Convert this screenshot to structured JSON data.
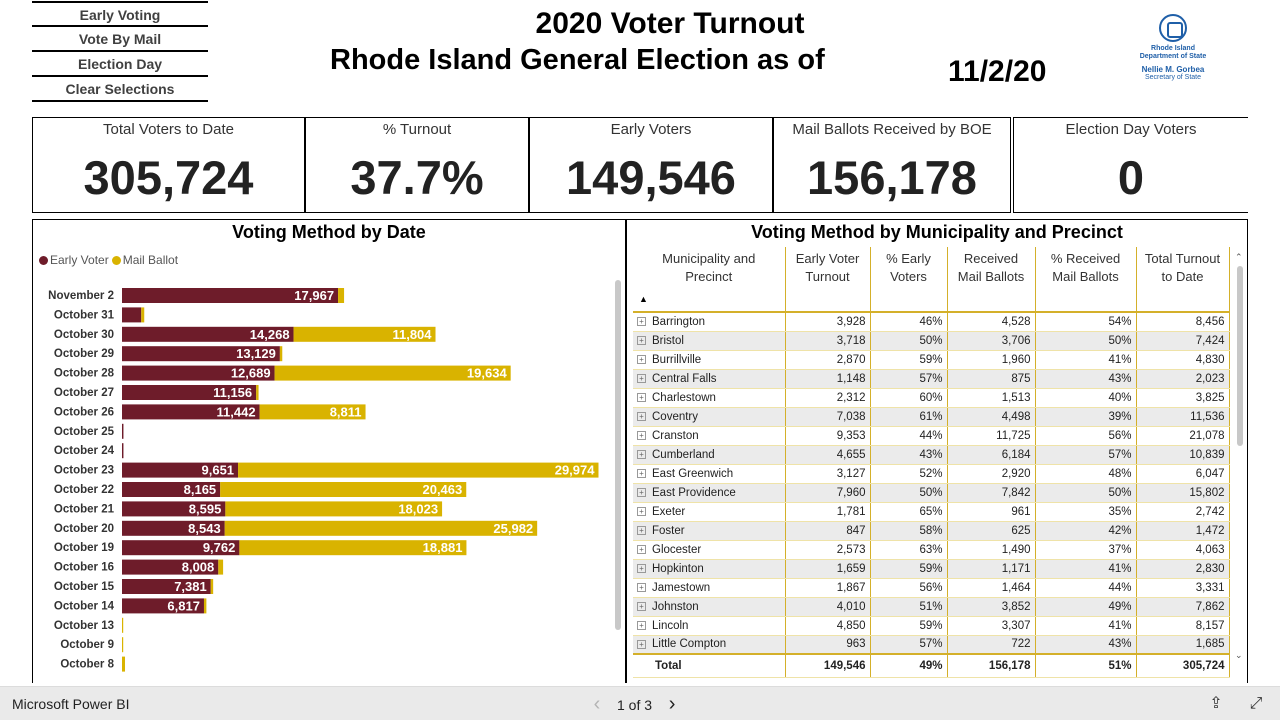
{
  "nav": {
    "buttons": [
      "Early Voting",
      "Vote By Mail",
      "Election Day",
      "Clear Selections"
    ]
  },
  "header": {
    "title_line1": "2020 Voter Turnout",
    "title_line2": "Rhode Island General Election as of",
    "as_of_date": "11/2/20"
  },
  "logo": {
    "line1": "Rhode Island",
    "line2": "Department of State",
    "line3": "Nellie M. Gorbea",
    "line4": "Secretary of State"
  },
  "kpis": [
    {
      "label": "Total Voters to Date",
      "value": "305,724"
    },
    {
      "label": "% Turnout",
      "value": "37.7%"
    },
    {
      "label": "Early Voters",
      "value": "149,546"
    },
    {
      "label": "Mail Ballots Received by BOE",
      "value": "156,178"
    },
    {
      "label": "Election Day Voters",
      "value": "0"
    }
  ],
  "colors": {
    "early_voter": "#6e1c2a",
    "mail_ballot": "#d9b300",
    "table_border": "#d4b02a"
  },
  "chart_data": {
    "type": "bar",
    "orientation": "horizontal",
    "stacked": true,
    "title": "Voting Method by Date",
    "legend": [
      "Early Voter",
      "Mail Ballot"
    ],
    "legend_position": "top-left",
    "categories": [
      "November 2",
      "October 31",
      "October 30",
      "October 29",
      "October 28",
      "October 27",
      "October 26",
      "October 25",
      "October 24",
      "October 23",
      "October 22",
      "October 21",
      "October 20",
      "October 19",
      "October 16",
      "October 15",
      "October 14",
      "October 13",
      "October 9",
      "October 8"
    ],
    "series": [
      {
        "name": "Early Voter",
        "values": [
          17967,
          1600,
          14268,
          13129,
          12689,
          11156,
          11442,
          120,
          120,
          9651,
          8165,
          8595,
          8543,
          9762,
          8008,
          7381,
          6817,
          0,
          0,
          0
        ],
        "labels": [
          "17,967",
          "",
          "14,268",
          "13,129",
          "12,689",
          "11,156",
          "11,442",
          "",
          "",
          "9,651",
          "8,165",
          "8,595",
          "8,543",
          "9,762",
          "8,008",
          "7,381",
          "6,817",
          "",
          "",
          ""
        ]
      },
      {
        "name": "Mail Ballot",
        "values": [
          500,
          250,
          11804,
          200,
          19634,
          200,
          8811,
          0,
          0,
          29974,
          20463,
          18023,
          25982,
          18881,
          400,
          200,
          200,
          100,
          100,
          250
        ],
        "labels": [
          "",
          "",
          "11,804",
          "",
          "19,634",
          "",
          "8,811",
          "",
          "",
          "29,974",
          "20,463",
          "18,023",
          "25,982",
          "18,881",
          "",
          "",
          "",
          "",
          "",
          ""
        ]
      }
    ],
    "xlim": [
      0,
      40000
    ],
    "grid": false
  },
  "table": {
    "title": "Voting Method by Municipality and Precinct",
    "columns": [
      "Municipality and Precinct",
      "Early Voter Turnout",
      "% Early Voters",
      "Received Mail Ballots",
      "% Received Mail Ballots",
      "Total Turnout to Date"
    ],
    "rows": [
      [
        "Barrington",
        "3,928",
        "46%",
        "4,528",
        "54%",
        "8,456"
      ],
      [
        "Bristol",
        "3,718",
        "50%",
        "3,706",
        "50%",
        "7,424"
      ],
      [
        "Burrillville",
        "2,870",
        "59%",
        "1,960",
        "41%",
        "4,830"
      ],
      [
        "Central Falls",
        "1,148",
        "57%",
        "875",
        "43%",
        "2,023"
      ],
      [
        "Charlestown",
        "2,312",
        "60%",
        "1,513",
        "40%",
        "3,825"
      ],
      [
        "Coventry",
        "7,038",
        "61%",
        "4,498",
        "39%",
        "11,536"
      ],
      [
        "Cranston",
        "9,353",
        "44%",
        "11,725",
        "56%",
        "21,078"
      ],
      [
        "Cumberland",
        "4,655",
        "43%",
        "6,184",
        "57%",
        "10,839"
      ],
      [
        "East Greenwich",
        "3,127",
        "52%",
        "2,920",
        "48%",
        "6,047"
      ],
      [
        "East Providence",
        "7,960",
        "50%",
        "7,842",
        "50%",
        "15,802"
      ],
      [
        "Exeter",
        "1,781",
        "65%",
        "961",
        "35%",
        "2,742"
      ],
      [
        "Foster",
        "847",
        "58%",
        "625",
        "42%",
        "1,472"
      ],
      [
        "Glocester",
        "2,573",
        "63%",
        "1,490",
        "37%",
        "4,063"
      ],
      [
        "Hopkinton",
        "1,659",
        "59%",
        "1,171",
        "41%",
        "2,830"
      ],
      [
        "Jamestown",
        "1,867",
        "56%",
        "1,464",
        "44%",
        "3,331"
      ],
      [
        "Johnston",
        "4,010",
        "51%",
        "3,852",
        "49%",
        "7,862"
      ],
      [
        "Lincoln",
        "4,850",
        "59%",
        "3,307",
        "41%",
        "8,157"
      ],
      [
        "Little Compton",
        "963",
        "57%",
        "722",
        "43%",
        "1,685"
      ]
    ],
    "total": [
      "Total",
      "149,546",
      "49%",
      "156,178",
      "51%",
      "305,724"
    ]
  },
  "footer": {
    "brand": "Microsoft Power BI",
    "page_indicator": "1 of 3"
  }
}
